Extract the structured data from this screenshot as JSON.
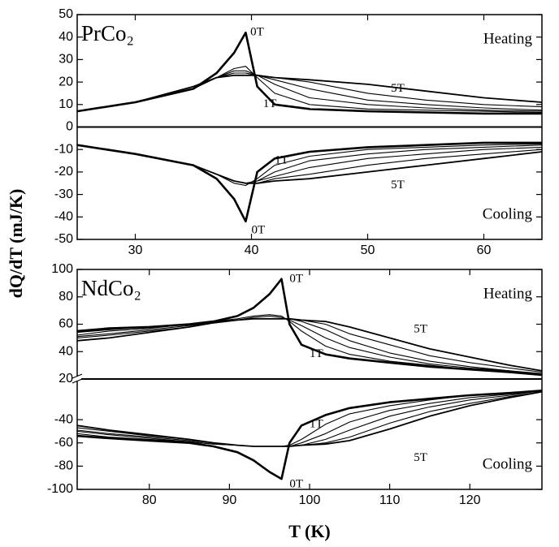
{
  "chart_data": [
    {
      "type": "line",
      "title": "PrCo₂",
      "ylabel": "dQ/dT (mJ/K)",
      "annotations": [
        "Heating",
        "Cooling"
      ],
      "color": "#000000",
      "x": [
        25,
        30,
        35,
        37,
        38.5,
        39.5,
        40.5,
        42,
        45,
        50,
        55,
        60,
        65
      ],
      "series": [
        {
          "name": "0T",
          "values": [
            7,
            11,
            17,
            24,
            33,
            42,
            18,
            10,
            8,
            7,
            6.5,
            6,
            6
          ]
        },
        {
          "name": "1T",
          "values": [
            7,
            11,
            17,
            22,
            26,
            27,
            22,
            15,
            10,
            8,
            7.5,
            7,
            6.5
          ]
        },
        {
          "values": [
            7,
            11,
            17,
            22,
            25,
            25,
            23,
            19,
            13,
            10,
            8.5,
            7.5,
            7
          ]
        },
        {
          "values": [
            7,
            11,
            17,
            22,
            24,
            24,
            23,
            21,
            17,
            12,
            10,
            8.5,
            7.5
          ]
        },
        {
          "values": [
            7,
            11,
            18,
            22,
            24,
            24,
            23,
            22,
            20,
            15,
            12,
            10,
            9
          ]
        },
        {
          "name": "5T",
          "values": [
            7,
            11,
            18,
            22,
            23,
            23,
            23,
            22,
            21,
            19,
            16,
            13,
            11
          ]
        },
        {
          "name": "0T",
          "values": [
            -8,
            -12,
            -17,
            -23,
            -32,
            -42,
            -20,
            -14,
            -11,
            -9,
            -8,
            -7,
            -7
          ]
        },
        {
          "name": "1T",
          "values": [
            -8,
            -12,
            -17,
            -21,
            -25,
            -26,
            -23,
            -17,
            -13,
            -10,
            -9,
            -8,
            -7.5
          ]
        },
        {
          "values": [
            -8,
            -12,
            -17,
            -21,
            -24,
            -25,
            -24,
            -20,
            -15,
            -12,
            -10,
            -9,
            -8
          ]
        },
        {
          "values": [
            -8,
            -12,
            -17,
            -21,
            -24,
            -25,
            -24,
            -22,
            -18,
            -14,
            -12,
            -10,
            -9
          ]
        },
        {
          "values": [
            -8,
            -12,
            -17,
            -21,
            -24,
            -25,
            -25,
            -23,
            -21,
            -17,
            -14,
            -12,
            -10
          ]
        },
        {
          "name": "5T",
          "values": [
            -8,
            -12,
            -17,
            -21,
            -24,
            -25,
            -25,
            -24,
            -23,
            -20,
            -17,
            -14,
            -11
          ]
        }
      ],
      "xlim": [
        25,
        65
      ],
      "xticks": [
        30,
        40,
        50,
        60
      ],
      "ylim": [
        -50,
        50
      ],
      "yticks": [
        -50,
        -40,
        -30,
        -20,
        -10,
        0,
        10,
        20,
        30,
        40,
        50
      ]
    },
    {
      "type": "line",
      "title": "NdCo₂",
      "xlabel": "T (K)",
      "annotations": [
        "Heating",
        "Cooling"
      ],
      "color": "#000000",
      "x": [
        71,
        75,
        80,
        85,
        88,
        91,
        93,
        95,
        96.5,
        97.5,
        99,
        102,
        105,
        110,
        115,
        120,
        125,
        129
      ],
      "series": [
        {
          "name": "0T",
          "values": [
            55,
            57,
            58,
            60,
            62,
            66,
            72,
            82,
            93,
            60,
            45,
            38,
            35,
            32,
            29,
            27,
            25,
            23
          ]
        },
        {
          "name": "1T",
          "values": [
            54,
            56,
            58,
            60,
            62,
            64,
            66,
            67,
            66,
            62,
            55,
            44,
            38,
            33,
            30,
            27,
            25,
            23
          ]
        },
        {
          "values": [
            52,
            55,
            57,
            60,
            62,
            63,
            65,
            66,
            65,
            63,
            59,
            50,
            43,
            36,
            31,
            28,
            26,
            23
          ]
        },
        {
          "values": [
            51,
            53,
            56,
            59,
            61,
            63,
            64,
            64,
            64,
            64,
            62,
            56,
            48,
            39,
            33,
            29,
            26,
            24
          ]
        },
        {
          "values": [
            50,
            52,
            55,
            58,
            61,
            63,
            64,
            64,
            64,
            64,
            63,
            60,
            53,
            45,
            37,
            32,
            28,
            25
          ]
        },
        {
          "name": "5T",
          "values": [
            48,
            50,
            54,
            58,
            61,
            63,
            64,
            64,
            64,
            64,
            63,
            62,
            58,
            50,
            42,
            36,
            30,
            26
          ]
        },
        {
          "name": "0T",
          "axis": "y2",
          "values": [
            -54,
            -56,
            -58,
            -60,
            -63,
            -68,
            -75,
            -85,
            -91,
            -60,
            -45,
            -36,
            -30,
            -25,
            -22,
            -19,
            -17,
            -15
          ]
        },
        {
          "name": "1T",
          "axis": "y2",
          "values": [
            -52,
            -55,
            -57,
            -59,
            -61,
            -62,
            -63,
            -63,
            -63,
            -62,
            -57,
            -44,
            -35,
            -28,
            -23,
            -19,
            -17,
            -15
          ]
        },
        {
          "axis": "y2",
          "values": [
            -50,
            -53,
            -56,
            -59,
            -61,
            -62,
            -63,
            -63,
            -63,
            -63,
            -60,
            -52,
            -42,
            -32,
            -26,
            -21,
            -18,
            -15
          ]
        },
        {
          "axis": "y2",
          "values": [
            -49,
            -52,
            -55,
            -58,
            -60,
            -62,
            -63,
            -63,
            -63,
            -63,
            -62,
            -57,
            -49,
            -37,
            -29,
            -23,
            -19,
            -15
          ]
        },
        {
          "axis": "y2",
          "values": [
            -47,
            -50,
            -54,
            -57,
            -60,
            -62,
            -63,
            -63,
            -63,
            -63,
            -62,
            -60,
            -55,
            -43,
            -33,
            -26,
            -20,
            -16
          ]
        },
        {
          "name": "5T",
          "axis": "y2",
          "values": [
            -45,
            -49,
            -53,
            -57,
            -60,
            -62,
            -63,
            -63,
            -63,
            -63,
            -62,
            -61,
            -58,
            -48,
            -37,
            -28,
            -21,
            -16
          ]
        }
      ],
      "xlim": [
        71,
        129
      ],
      "xticks": [
        80,
        90,
        100,
        110,
        120
      ],
      "ylim": [
        20,
        100
      ],
      "yticks": [
        20,
        40,
        60,
        80,
        100
      ],
      "y2lim": [
        -100,
        -5
      ],
      "y2ticks": [
        -40,
        -60,
        -80,
        -100
      ]
    }
  ]
}
